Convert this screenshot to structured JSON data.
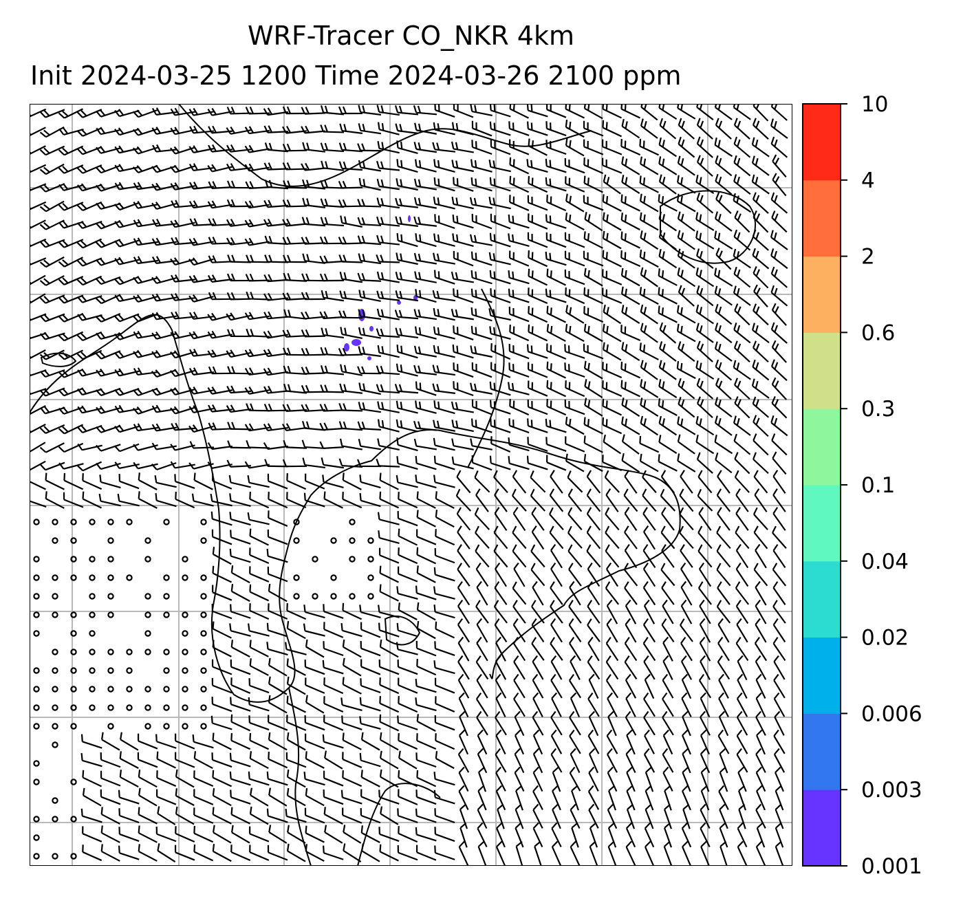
{
  "title_line1": "WRF-Tracer CO_NKR 4km",
  "title_line2": "Init 2024-03-25 1200 Time 2024-03-26 2100 ppm",
  "colorbar": {
    "levels": [
      "0.001",
      "0.003",
      "0.006",
      "0.02",
      "0.04",
      "0.1",
      "0.3",
      "0.6",
      "2",
      "4",
      "10"
    ],
    "colors": [
      "#6633ff",
      "#3377f0",
      "#00b0ea",
      "#2ddcd0",
      "#5ef8c0",
      "#8ef79e",
      "#cfe088",
      "#fdb060",
      "#ff6e3b",
      "#ff2a17"
    ]
  },
  "map": {
    "features": [
      "wind-barbs",
      "coastlines",
      "lat-lon-gridlines",
      "co-tracer-field"
    ],
    "tracer_color": "#6633ff"
  }
}
